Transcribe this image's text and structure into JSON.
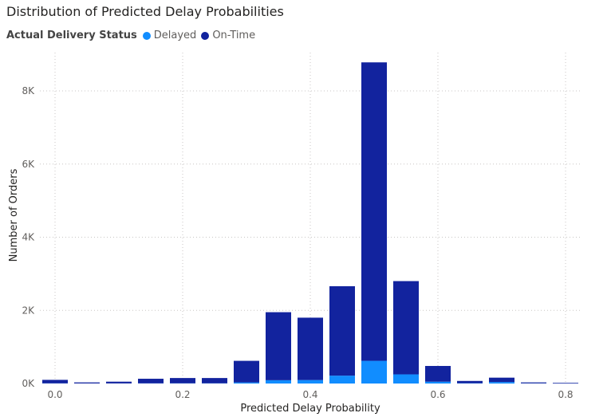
{
  "chart_data": {
    "type": "bar",
    "stacked": true,
    "title": "Distribution of Predicted Delay Probabilities",
    "legend_title": "Actual Delivery Status",
    "legend_position": "top-left",
    "xlabel": "Predicted Delay Probability",
    "ylabel": "Number of Orders",
    "x": [
      0.0,
      0.05,
      0.1,
      0.15,
      0.2,
      0.25,
      0.3,
      0.35,
      0.4,
      0.45,
      0.5,
      0.55,
      0.6,
      0.65,
      0.7,
      0.75,
      0.8
    ],
    "series": [
      {
        "name": "Delayed",
        "color": "#118DFF",
        "values": [
          5,
          2,
          3,
          5,
          6,
          6,
          30,
          90,
          95,
          215,
          620,
          250,
          50,
          8,
          40,
          4,
          3
        ]
      },
      {
        "name": "On-Time",
        "color": "#12239E",
        "values": [
          95,
          28,
          47,
          125,
          144,
          144,
          590,
          1860,
          1705,
          2445,
          8160,
          2550,
          430,
          62,
          120,
          26,
          17
        ]
      }
    ],
    "xlim": [
      -0.02,
      0.82
    ],
    "ylim": [
      0,
      9000
    ],
    "x_ticks": [
      0.0,
      0.2,
      0.4,
      0.6,
      0.8
    ],
    "x_tick_labels": [
      "0.0",
      "0.2",
      "0.4",
      "0.6",
      "0.8"
    ],
    "y_ticks": [
      0,
      2000,
      4000,
      6000,
      8000
    ],
    "y_tick_labels": [
      "0K",
      "2K",
      "4K",
      "6K",
      "8K"
    ],
    "grid": true
  }
}
